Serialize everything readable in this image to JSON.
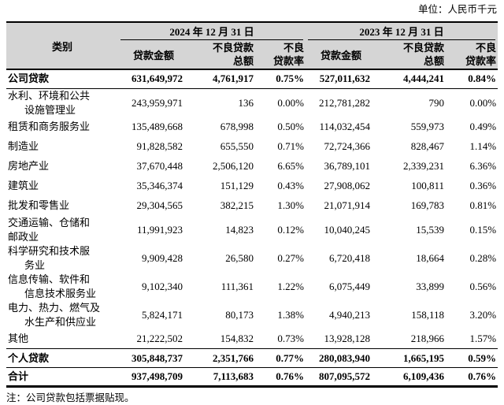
{
  "unit_label": "单位：人民币千元",
  "footnote": "注：公司贷款包括票据贴现。",
  "colors": {
    "header_bg": "#d5d5d5",
    "rule": "#000000",
    "text": "#000000",
    "page_bg": "#ffffff"
  },
  "table": {
    "category_header": "类别",
    "groups": [
      {
        "label": "2024 年 12 月 31 日"
      },
      {
        "label": "2023 年 12 月 31 日"
      }
    ],
    "sub_headers": {
      "loan_amount": "贷款金额",
      "npl_total_l1": "不良贷款",
      "npl_total_l2": "总额",
      "npl_ratio_l1": "不良",
      "npl_ratio_l2": "贷款率"
    },
    "rows": [
      {
        "category_lines": [
          "公司贷款"
        ],
        "bold": true,
        "rule_below": "thin",
        "values": [
          "631,649,972",
          "4,761,917",
          "0.75%",
          "527,011,632",
          "4,444,241",
          "0.84%"
        ]
      },
      {
        "category_lines": [
          "水利、环境和公共",
          "设施管理业"
        ],
        "indent_wrap": true,
        "values": [
          "243,959,971",
          "136",
          "0.00%",
          "212,781,282",
          "790",
          "0.00%"
        ]
      },
      {
        "category_lines": [
          "租赁和商务服务业"
        ],
        "values": [
          "135,489,668",
          "678,998",
          "0.50%",
          "114,032,454",
          "559,973",
          "0.49%"
        ]
      },
      {
        "category_lines": [
          "制造业"
        ],
        "values": [
          "91,828,582",
          "655,550",
          "0.71%",
          "72,724,366",
          "828,467",
          "1.14%"
        ]
      },
      {
        "category_lines": [
          "房地产业"
        ],
        "values": [
          "37,670,448",
          "2,506,120",
          "6.65%",
          "36,789,101",
          "2,339,231",
          "6.36%"
        ]
      },
      {
        "category_lines": [
          "建筑业"
        ],
        "values": [
          "35,346,374",
          "151,129",
          "0.43%",
          "27,908,062",
          "100,811",
          "0.36%"
        ]
      },
      {
        "category_lines": [
          "批发和零售业"
        ],
        "values": [
          "29,304,565",
          "382,215",
          "1.30%",
          "21,071,914",
          "169,783",
          "0.81%"
        ]
      },
      {
        "category_lines": [
          "交通运输、仓储和",
          "邮政业"
        ],
        "indent_wrap": false,
        "values": [
          "11,991,923",
          "14,823",
          "0.12%",
          "10,040,245",
          "15,539",
          "0.15%"
        ]
      },
      {
        "category_lines": [
          "科学研究和技术服",
          "务业"
        ],
        "indent_wrap": true,
        "values": [
          "9,909,428",
          "26,580",
          "0.27%",
          "6,720,418",
          "18,664",
          "0.28%"
        ]
      },
      {
        "category_lines": [
          "信息传输、软件和",
          "信息技术服务业"
        ],
        "indent_wrap": true,
        "values": [
          "9,102,340",
          "111,361",
          "1.22%",
          "6,075,449",
          "33,899",
          "0.56%"
        ]
      },
      {
        "category_lines": [
          "电力、热力、燃气及",
          "水生产和供应业"
        ],
        "indent_wrap": true,
        "values": [
          "5,824,171",
          "80,173",
          "1.38%",
          "4,940,213",
          "158,118",
          "3.20%"
        ]
      },
      {
        "category_lines": [
          "其他"
        ],
        "rule_below": "thin",
        "values": [
          "21,222,502",
          "154,832",
          "0.73%",
          "13,928,128",
          "218,966",
          "1.57%"
        ]
      },
      {
        "category_lines": [
          "个人贷款"
        ],
        "bold": true,
        "rule_below": "thin",
        "values": [
          "305,848,737",
          "2,351,766",
          "0.77%",
          "280,083,940",
          "1,665,195",
          "0.59%"
        ]
      },
      {
        "category_lines": [
          "合计"
        ],
        "bold": true,
        "rule_below": "thick",
        "values": [
          "937,498,709",
          "7,113,683",
          "0.76%",
          "807,095,572",
          "6,109,436",
          "0.76%"
        ]
      }
    ]
  }
}
